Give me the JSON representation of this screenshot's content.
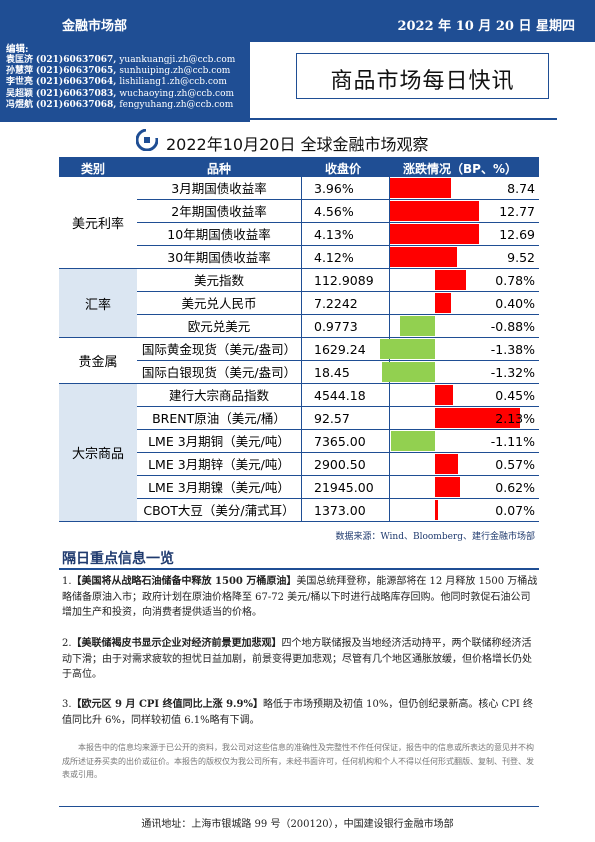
{
  "header": {
    "department": "金融市场部",
    "date": "2022 年 10 月 20 日  星期四"
  },
  "editors": {
    "label": "编辑:",
    "rows": [
      {
        "name": "袁匡济",
        "phone": "(021)60637067,",
        "email": "yuankuangji.zh@ccb.com"
      },
      {
        "name": "孙慧萍",
        "phone": "(021)60637065,",
        "email": "sunhuiping.zh@ccb.com"
      },
      {
        "name": "李世亮",
        "phone": "(021)60637064,",
        "email": "lishiliang1.zh@ccb.com"
      },
      {
        "name": "吴超颖",
        "phone": "(021)60637083,",
        "email": "wuchaoying.zh@ccb.com"
      },
      {
        "name": "冯煜航",
        "phone": "(021)60637068,",
        "email": "fengyuhang.zh@ccb.com"
      }
    ]
  },
  "report_title": "商品市场每日快讯",
  "observation_title": "2022年10月20日 全球金融市场观察",
  "colors": {
    "brand": "#1f4e94",
    "up": "#ff0000",
    "down": "#92d050"
  },
  "table": {
    "headers": {
      "category": "类别",
      "item": "品种",
      "close": "收盘价",
      "change": "涨跌情况（BP、%）"
    },
    "groups": [
      {
        "name": "美元利率",
        "rows": [
          {
            "item": "3月期国债收益率",
            "close": "3.96%",
            "change": "8.74",
            "value": 8.74,
            "unit": "bp"
          },
          {
            "item": "2年期国债收益率",
            "close": "4.56%",
            "change": "12.77",
            "value": 12.77,
            "unit": "bp"
          },
          {
            "item": "10年期国债收益率",
            "close": "4.13%",
            "change": "12.69",
            "value": 12.69,
            "unit": "bp"
          },
          {
            "item": "30年期国债收益率",
            "close": "4.12%",
            "change": "9.52",
            "value": 9.52,
            "unit": "bp"
          }
        ]
      },
      {
        "name": "汇率",
        "rows": [
          {
            "item": "美元指数",
            "close": "112.9089",
            "change": "0.78%",
            "value": 0.78,
            "unit": "pct"
          },
          {
            "item": "美元兑人民币",
            "close": "7.2242",
            "change": "0.40%",
            "value": 0.4,
            "unit": "pct"
          },
          {
            "item": "欧元兑美元",
            "close": "0.9773",
            "change": "-0.88%",
            "value": -0.88,
            "unit": "pct"
          }
        ]
      },
      {
        "name": "贵金属",
        "rows": [
          {
            "item": "国际黄金现货（美元/盎司）",
            "close": "1629.24",
            "change": "-1.38%",
            "value": -1.38,
            "unit": "pct"
          },
          {
            "item": "国际白银现货（美元/盎司）",
            "close": "18.45",
            "change": "-1.32%",
            "value": -1.32,
            "unit": "pct"
          }
        ]
      },
      {
        "name": "大宗商品",
        "rows": [
          {
            "item": "建行大宗商品指数",
            "close": "4544.18",
            "change": "0.45%",
            "value": 0.45,
            "unit": "pct"
          },
          {
            "item": "BRENT原油（美元/桶）",
            "close": "92.57",
            "change": "2.13%",
            "value": 2.13,
            "unit": "pct"
          },
          {
            "item": "LME 3月期铜（美元/吨）",
            "close": "7365.00",
            "change": "-1.11%",
            "value": -1.11,
            "unit": "pct"
          },
          {
            "item": "LME 3月期锌（美元/吨）",
            "close": "2900.50",
            "change": "0.57%",
            "value": 0.57,
            "unit": "pct"
          },
          {
            "item": "LME 3月期镍（美元/吨）",
            "close": "21945.00",
            "change": "0.62%",
            "value": 0.62,
            "unit": "pct"
          },
          {
            "item": "CBOT大豆（美分/蒲式耳）",
            "close": "1373.00",
            "change": "0.07%",
            "value": 0.07,
            "unit": "pct"
          }
        ]
      }
    ]
  },
  "source": "数据来源：Wind、Bloomberg、建行金融市场部",
  "section_title": "隔日重点信息一览",
  "news": [
    {
      "num": "1.",
      "headline": "【美国将从战略石油储备中释放 1500 万桶原油】",
      "body": "美国总统拜登称，能源部将在 12 月释放 1500 万桶战略储备原油入市；政府计划在原油价格降至 67-72 美元/桶以下时进行战略库存回购。他同时敦促石油公司增加生产和投资，向消费者提供适当的价格。"
    },
    {
      "num": "2.",
      "headline": "【美联储褐皮书显示企业对经济前景更加悲观】",
      "body": "四个地方联储报及当地经济活动持平，两个联储称经济活动下滑；由于对需求疲软的担忧日益加剧，前景变得更加悲观；尽管有几个地区通胀放缓，但价格增长仍处于高位。"
    },
    {
      "num": "3.",
      "headline": "【欧元区 9 月 CPI 终值同比上涨 9.9%】",
      "body": "略低于市场预期及初值 10%，但仍创纪录新高。核心 CPI 终值同比升 6%，同样较初值 6.1%略有下调。"
    }
  ],
  "disclaimer": "本报告中的信息均来源于已公开的资料，我公司对这些信息的准确性及完整性不作任何保证，报告中的信息或所表达的意见并不构成所述证券买卖的出价或征价。本报告的版权仅为我公司所有，未经书面许可，任何机构和个人不得以任何形式翻版、复制、刊登、发表或引用。",
  "footer": "通讯地址：上海市银城路 99 号（200120），中国建设银行金融市场部"
}
